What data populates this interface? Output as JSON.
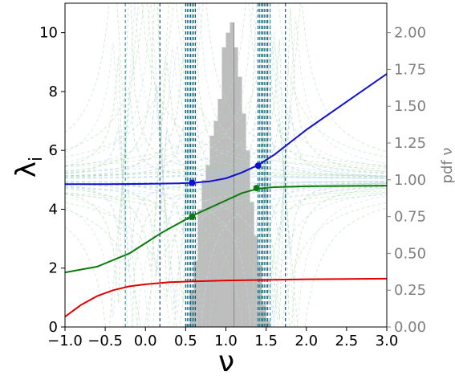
{
  "chart_data": {
    "type": "line",
    "xlabel": "ν",
    "ylabel": "λ",
    "ylabel_sub": "i",
    "ylabel_right": "pdf ν",
    "xlim": [
      -1.0,
      3.0
    ],
    "ylim": [
      0,
      11
    ],
    "ylim_right": [
      0.0,
      2.2
    ],
    "grid": false,
    "x_ticks": [
      -1.0,
      -0.5,
      0.0,
      0.5,
      1.0,
      1.5,
      2.0,
      2.5,
      3.0
    ],
    "x_tick_labels": [
      "−1.0",
      "−0.5",
      "0.0",
      "0.5",
      "1.0",
      "1.5",
      "2.0",
      "2.5",
      "3.0"
    ],
    "y_ticks": [
      0,
      2,
      4,
      6,
      8,
      10
    ],
    "y_tick_labels": [
      "0",
      "2",
      "4",
      "6",
      "8",
      "10"
    ],
    "y_right_ticks": [
      0.0,
      0.25,
      0.5,
      0.75,
      1.0,
      1.25,
      1.5,
      1.75,
      2.0
    ],
    "y_right_tick_labels": [
      "0.00",
      "0.25",
      "0.50",
      "0.75",
      "1.00",
      "1.25",
      "1.50",
      "1.75",
      "2.00"
    ],
    "histogram": {
      "axis": "right",
      "color": "#bdbdbd",
      "bins": [
        {
          "x": 0.5,
          "h": 0.02
        },
        {
          "x": 0.55,
          "h": 0.25
        },
        {
          "x": 0.6,
          "h": 0.45
        },
        {
          "x": 0.65,
          "h": 0.8
        },
        {
          "x": 0.7,
          "h": 1.0
        },
        {
          "x": 0.75,
          "h": 1.1
        },
        {
          "x": 0.8,
          "h": 1.3
        },
        {
          "x": 0.85,
          "h": 1.4
        },
        {
          "x": 0.9,
          "h": 1.55
        },
        {
          "x": 0.95,
          "h": 1.9
        },
        {
          "x": 1.0,
          "h": 2.0
        },
        {
          "x": 1.05,
          "h": 2.07
        },
        {
          "x": 1.1,
          "h": 1.9
        },
        {
          "x": 1.15,
          "h": 1.7
        },
        {
          "x": 1.2,
          "h": 1.45
        },
        {
          "x": 1.25,
          "h": 1.2
        },
        {
          "x": 1.3,
          "h": 0.85
        },
        {
          "x": 1.35,
          "h": 0.62
        },
        {
          "x": 1.4,
          "h": 0.42
        },
        {
          "x": 1.45,
          "h": 0.15
        },
        {
          "x": 1.5,
          "h": 0.04
        }
      ],
      "bin_width": 0.05,
      "median_line_x": 1.1
    },
    "series": [
      {
        "color": "#e00000",
        "x": [
          -1.0,
          -0.8,
          -0.6,
          -0.4,
          -0.2,
          0.0,
          0.3,
          0.6,
          1.0,
          1.5,
          2.0,
          3.0
        ],
        "y": [
          0.35,
          0.75,
          1.05,
          1.25,
          1.38,
          1.45,
          1.52,
          1.55,
          1.58,
          1.6,
          1.62,
          1.64
        ]
      },
      {
        "color": "#0a7a0a",
        "x": [
          -1.0,
          -0.6,
          -0.2,
          0.0,
          0.2,
          0.4,
          0.6,
          0.8,
          1.0,
          1.2,
          1.4,
          1.6,
          2.0,
          3.0
        ],
        "y": [
          1.85,
          2.05,
          2.5,
          2.85,
          3.2,
          3.5,
          3.8,
          4.05,
          4.3,
          4.55,
          4.7,
          4.75,
          4.78,
          4.8
        ]
      },
      {
        "color": "#1010d0",
        "x": [
          -1.0,
          -0.5,
          0.0,
          0.4,
          0.6,
          0.8,
          1.0,
          1.2,
          1.4,
          1.6,
          2.0,
          2.5,
          3.0
        ],
        "y": [
          4.85,
          4.85,
          4.86,
          4.88,
          4.9,
          4.95,
          5.05,
          5.25,
          5.5,
          5.85,
          6.7,
          7.65,
          8.6
        ]
      }
    ],
    "markers": [
      {
        "x": 0.58,
        "y": 3.75,
        "color": "#0a7a0a"
      },
      {
        "x": 1.38,
        "y": 4.72,
        "color": "#0a7a0a"
      },
      {
        "x": 0.58,
        "y": 4.9,
        "color": "#1010d0"
      },
      {
        "x": 1.4,
        "y": 5.48,
        "color": "#1010d0"
      }
    ],
    "dashed_verticals": [
      {
        "x": -0.25,
        "color": "#3a9ab0"
      },
      {
        "x": 0.18,
        "color": "#1a4f8a"
      },
      {
        "x": 0.5,
        "color": "#1a4f8a"
      },
      {
        "x": 0.52,
        "color": "#1f7a6a"
      },
      {
        "x": 0.54,
        "color": "#2a8aa0"
      },
      {
        "x": 0.56,
        "color": "#1a4f8a"
      },
      {
        "x": 0.58,
        "color": "#2a8aa0"
      },
      {
        "x": 0.6,
        "color": "#1f7a6a"
      },
      {
        "x": 0.62,
        "color": "#1a4f8a"
      },
      {
        "x": 1.4,
        "color": "#1a4f8a"
      },
      {
        "x": 1.42,
        "color": "#2a8aa0"
      },
      {
        "x": 1.44,
        "color": "#1f7a6a"
      },
      {
        "x": 1.46,
        "color": "#1a4f8a"
      },
      {
        "x": 1.48,
        "color": "#2a8aa0"
      },
      {
        "x": 1.5,
        "color": "#1f7a6a"
      },
      {
        "x": 1.52,
        "color": "#1a4f8a"
      },
      {
        "x": 1.55,
        "color": "#2a8aa0"
      },
      {
        "x": 1.74,
        "color": "#1a4f8a"
      }
    ],
    "faint_curves_colors": [
      "#9ecae1",
      "#a1d99b",
      "#c6dbef",
      "#b2dfb0"
    ]
  }
}
